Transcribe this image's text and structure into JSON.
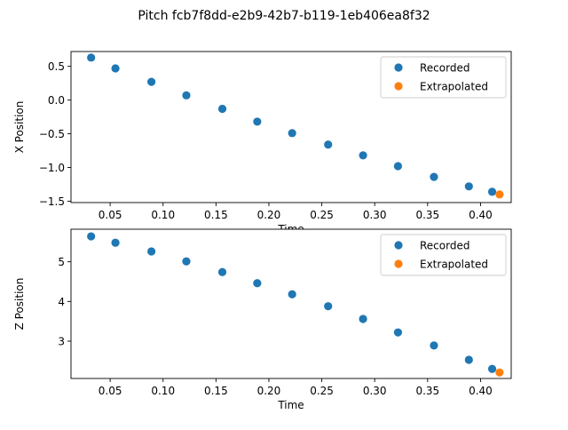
{
  "figure": {
    "title": "Pitch fcb7f8dd-e2b9-42b7-b119-1eb406ea8f32"
  },
  "colors": {
    "recorded": "#1f77b4",
    "extrapolated": "#ff7f0e",
    "axis": "#000000",
    "legend_border": "#cccccc"
  },
  "chart_data": [
    {
      "type": "scatter",
      "xlabel": "Time",
      "ylabel": "X Position",
      "xlim": [
        0.013,
        0.429
      ],
      "ylim": [
        -1.52,
        0.72
      ],
      "xticks": [
        0.05,
        0.1,
        0.15,
        0.2,
        0.25,
        0.3,
        0.35,
        0.4
      ],
      "xtick_labels": [
        "0.05",
        "0.10",
        "0.15",
        "0.20",
        "0.25",
        "0.30",
        "0.35",
        "0.40"
      ],
      "yticks": [
        0.5,
        0.0,
        -0.5,
        -1.0,
        -1.5
      ],
      "ytick_labels": [
        "0.5",
        "0.0",
        "−0.5",
        "−1.0",
        "−1.5"
      ],
      "legend_position": "top-right",
      "series": [
        {
          "name": "Recorded",
          "x": [
            0.032,
            0.055,
            0.089,
            0.122,
            0.156,
            0.189,
            0.222,
            0.256,
            0.289,
            0.322,
            0.356,
            0.389,
            0.411
          ],
          "y": [
            0.63,
            0.47,
            0.27,
            0.07,
            -0.13,
            -0.32,
            -0.49,
            -0.66,
            -0.82,
            -0.98,
            -1.14,
            -1.28,
            -1.36
          ]
        },
        {
          "name": "Extrapolated",
          "x": [
            0.418
          ],
          "y": [
            -1.4
          ]
        }
      ]
    },
    {
      "type": "scatter",
      "xlabel": "Time",
      "ylabel": "Z Position",
      "xlim": [
        0.013,
        0.429
      ],
      "ylim": [
        2.06,
        5.82
      ],
      "xticks": [
        0.05,
        0.1,
        0.15,
        0.2,
        0.25,
        0.3,
        0.35,
        0.4
      ],
      "xtick_labels": [
        "0.05",
        "0.10",
        "0.15",
        "0.20",
        "0.25",
        "0.30",
        "0.35",
        "0.40"
      ],
      "yticks": [
        5,
        4,
        3
      ],
      "ytick_labels": [
        "5",
        "4",
        "3"
      ],
      "legend_position": "top-right",
      "series": [
        {
          "name": "Recorded",
          "x": [
            0.032,
            0.055,
            0.089,
            0.122,
            0.156,
            0.189,
            0.222,
            0.256,
            0.289,
            0.322,
            0.356,
            0.389,
            0.411
          ],
          "y": [
            5.64,
            5.48,
            5.26,
            5.01,
            4.74,
            4.46,
            4.18,
            3.88,
            3.56,
            3.22,
            2.89,
            2.53,
            2.3
          ]
        },
        {
          "name": "Extrapolated",
          "x": [
            0.418
          ],
          "y": [
            2.21
          ]
        }
      ]
    }
  ]
}
